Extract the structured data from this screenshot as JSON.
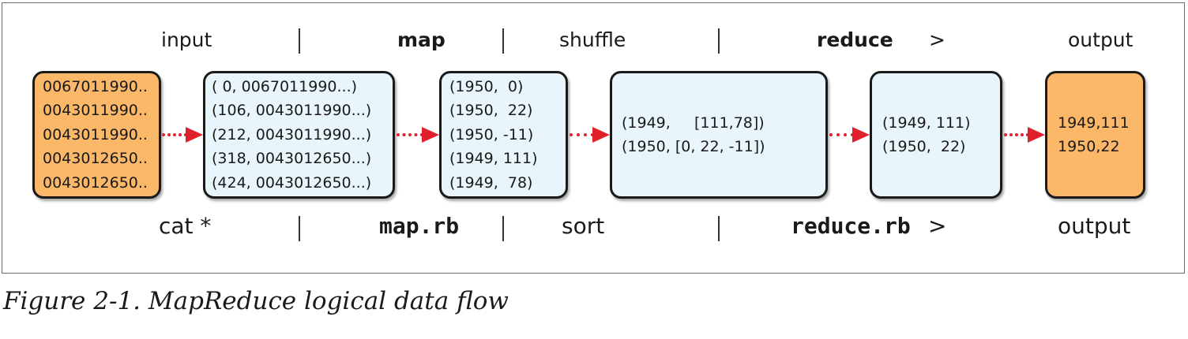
{
  "header": {
    "input": "input",
    "map": "map",
    "shuffle": "shuffle",
    "reduce": "reduce",
    "redirect": ">",
    "output": "output"
  },
  "footer": {
    "cat": "cat *",
    "map_rb": "map.rb",
    "sort": "sort",
    "reduce_rb": "reduce.rb",
    "redirect": ">",
    "output": "output"
  },
  "boxes": {
    "input": [
      "0067011990..",
      "0043011990..",
      "0043011990..",
      "0043012650..",
      "0043012650.."
    ],
    "map_input": [
      "( 0, 0067011990...)",
      "(106, 0043011990...)",
      "(212, 0043011990...)",
      "(318, 0043012650...)",
      "(424, 0043012650...)"
    ],
    "map_output": [
      "(1950,  0)",
      "(1950,  22)",
      "(1950, -11)",
      "(1949, 111)",
      "(1949,  78)"
    ],
    "shuffle": [
      "(1949,     [111,78])",
      "(1950, [0, 22, -11])"
    ],
    "reduce": [
      "(1949, 111)",
      "(1950,  22)"
    ],
    "output": [
      "1949,111",
      "1950,22"
    ]
  },
  "colors": {
    "orange_box": "#fbb868",
    "blue_box": "#e8f5fb",
    "arrow": "#e0212b"
  },
  "caption": "Figure 2-1. MapReduce logical data flow"
}
